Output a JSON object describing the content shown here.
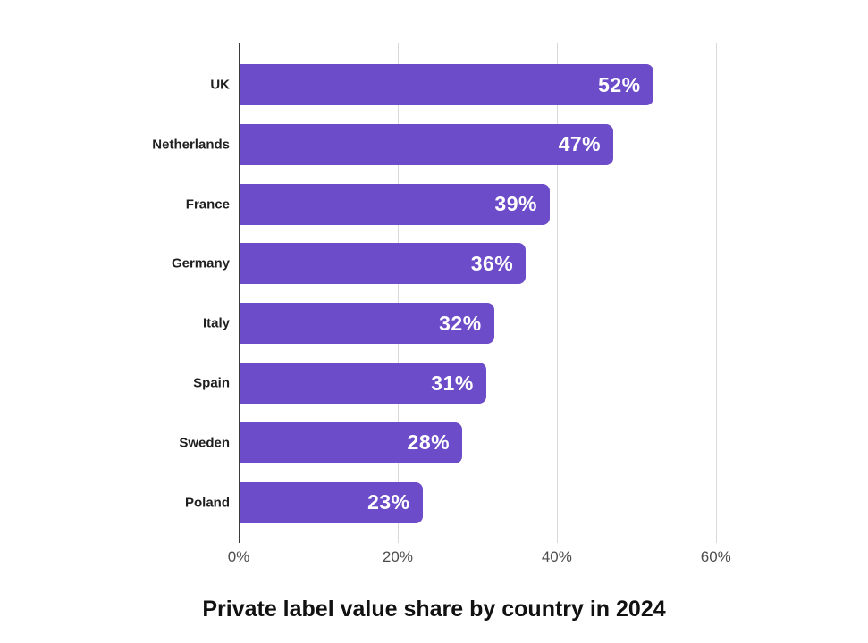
{
  "chart_data": {
    "type": "bar",
    "orientation": "horizontal",
    "title": "Private label value share by country in 2024",
    "categories": [
      "UK",
      "Netherlands",
      "France",
      "Germany",
      "Italy",
      "Spain",
      "Sweden",
      "Poland"
    ],
    "values": [
      52,
      47,
      39,
      36,
      32,
      31,
      28,
      23
    ],
    "value_labels": [
      "52%",
      "47%",
      "39%",
      "36%",
      "32%",
      "31%",
      "28%",
      "23%"
    ],
    "xlabel": "",
    "ylabel": "",
    "xlim": [
      0,
      72.5
    ],
    "x_ticks": [
      0,
      20,
      40,
      60
    ],
    "x_tick_labels": [
      "0%",
      "20%",
      "40%",
      "60%"
    ],
    "grid": "vertical-gridlines-on",
    "legend": "none",
    "bar_color": "#6C4CC8",
    "value_label_color": "#ffffff",
    "category_label_color": "#1f1f1f",
    "axis_line_color": "#3a3a3a",
    "grid_color": "#d9d9d9",
    "tick_label_color": "#4d4d4d",
    "title_color": "#111111",
    "background_color": "#ffffff"
  }
}
